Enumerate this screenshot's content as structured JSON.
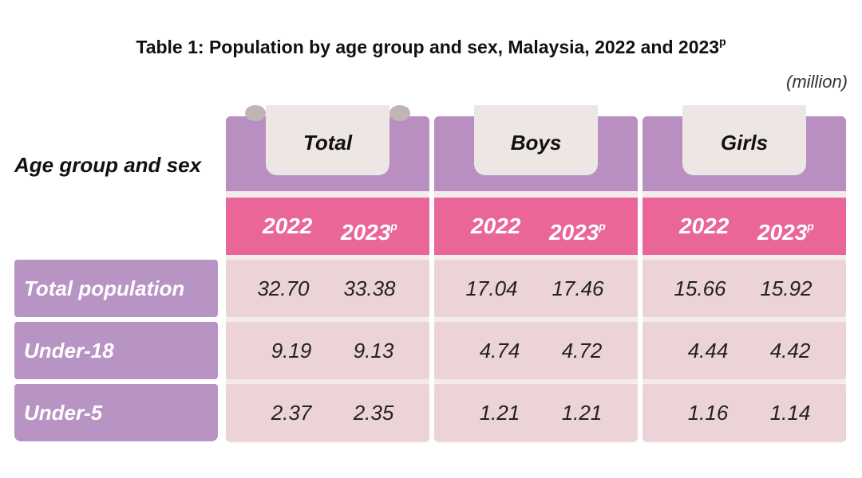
{
  "title": "Table 1: Population by age group and sex, Malaysia, 2022 and 2023",
  "title_sup": "p",
  "unit": "(million)",
  "row_header": "Age group and sex",
  "columns": [
    {
      "label": "Total",
      "year1": "2022",
      "year2": "2023",
      "year2_sup": "p"
    },
    {
      "label": "Boys",
      "year1": "2022",
      "year2": "2023",
      "year2_sup": "p"
    },
    {
      "label": "Girls",
      "year1": "2022",
      "year2": "2023",
      "year2_sup": "p"
    }
  ],
  "rows": [
    {
      "label": "Total population",
      "values": [
        "32.70",
        "33.38",
        "17.04",
        "17.46",
        "15.66",
        "15.92"
      ]
    },
    {
      "label": "Under-18",
      "values": [
        "9.19",
        "9.13",
        "4.74",
        "4.72",
        "4.44",
        "4.42"
      ]
    },
    {
      "label": "Under-5",
      "values": [
        "2.37",
        "2.35",
        "1.21",
        "1.21",
        "1.16",
        "1.14"
      ]
    }
  ],
  "colors": {
    "header_purple": "#b88fc0",
    "year_pink": "#ea6598",
    "cell_pink": "#ecd3d7",
    "row_label_purple": "#b794c3"
  }
}
